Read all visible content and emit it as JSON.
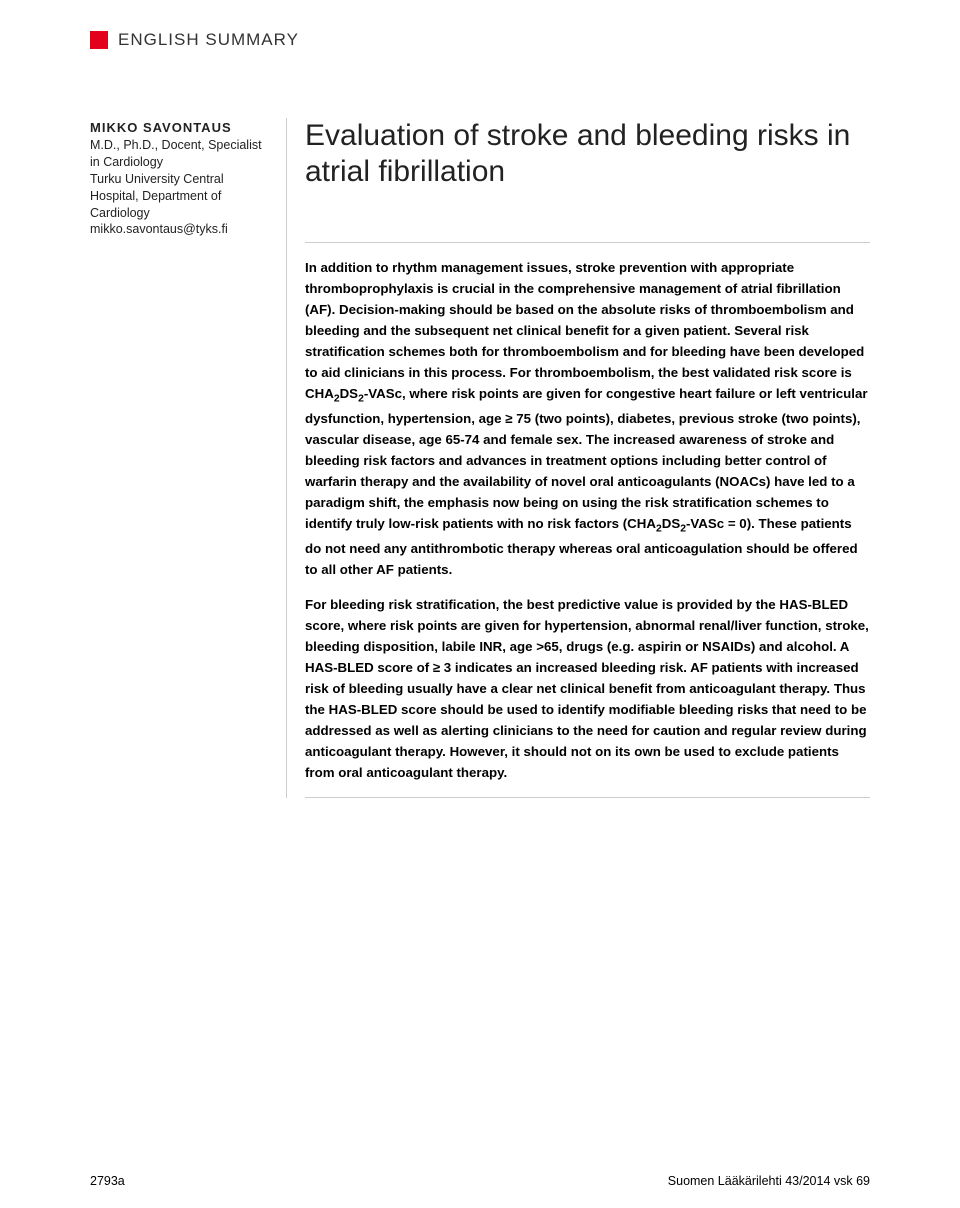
{
  "header": {
    "section_label": "ENGLISH SUMMARY"
  },
  "sidebar": {
    "author_name": "MIKKO SAVONTAUS",
    "credentials": "M.D., Ph.D., Docent, Specialist in Cardiology",
    "affiliation": "Turku University Central Hospital, Department of Cardiology",
    "email": "mikko.savontaus@tyks.fi"
  },
  "main": {
    "title": "Evaluation of stroke and bleeding risks in atrial fibrillation",
    "para1_pre": "In addition to rhythm management issues, stroke prevention with appropriate thromboprophylaxis is crucial in the comprehensive management of atrial fibrillation (AF). Decision-making should be based on the absolute risks of thromboembolism and bleeding and the subsequent net clinical benefit for a given patient. Several risk stratification schemes both for thromboembolism and for bleeding have been developed to aid clinicians in this process. For thromboembolism, the best validated risk score is CHA",
    "para1_mid1": "DS",
    "para1_mid2": "-VASc, where risk points are given for congestive heart failure or left ventricular dysfunction, hypertension, age ≥ 75 (two points), diabetes, previous stroke (two points), vascular disease, age 65-74 and female sex. The increased awareness of stroke and bleeding risk factors and advances in treatment options including better control of warfarin therapy and the availability of novel oral anticoagulants (NOACs) have led to a paradigm shift, the emphasis now being on using the risk stratification schemes to identify truly low-risk patients with no risk factors (CHA",
    "para1_mid3": "DS",
    "para1_post": "-VASc = 0). These patients do not need any antithrombotic therapy whereas oral anticoagulation should be offered to all other AF patients.",
    "para2": "For bleeding risk stratification, the best predictive value is provided by the HAS-BLED score, where risk points are given for hypertension, abnormal renal/liver function, stroke, bleeding disposition, labile INR, age >65, drugs (e.g. aspirin or NSAIDs) and alcohol. A HAS-BLED score of ≥ 3 indicates an increased bleeding risk. AF patients with increased risk of bleeding usually have a clear net clinical benefit from anticoagulant therapy. Thus the HAS-BLED score should be used to identify modifiable bleeding risks that need to be addressed as well as alerting clinicians to the need for caution and regular review during anticoagulant therapy. However, it should not on its own be used to exclude patients from oral anticoagulant therapy."
  },
  "footer": {
    "left": "2793a",
    "right": "Suomen Lääkärilehti 43/2014 vsk 69"
  },
  "colors": {
    "accent_red": "#e2001a",
    "rule_gray": "#cccccc",
    "text_main": "#000000"
  }
}
